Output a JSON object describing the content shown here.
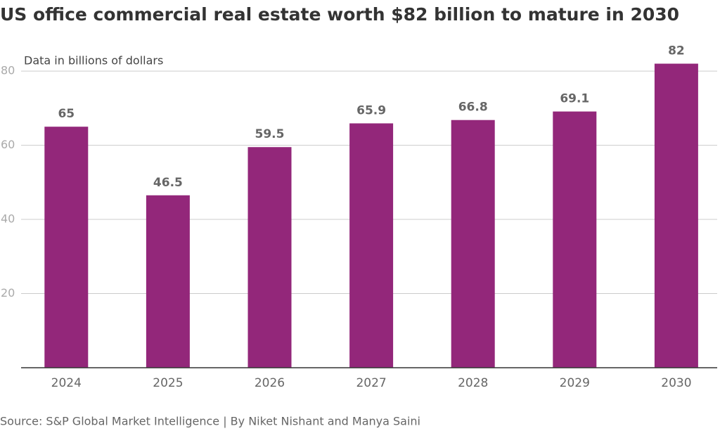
{
  "chart_data": {
    "type": "bar",
    "title": "US office commercial real estate worth $82 billion to mature in 2030",
    "subtitle": "Data in billions of dollars",
    "source": "Source: S&P Global Market Intelligence | By Niket Nishant and Manya Saini",
    "categories": [
      "2024",
      "2025",
      "2026",
      "2027",
      "2028",
      "2029",
      "2030"
    ],
    "values": [
      65,
      46.5,
      59.5,
      65.9,
      66.8,
      69.1,
      82
    ],
    "color": "#93277a",
    "ylim": [
      0,
      84
    ],
    "yticks": [
      20,
      40,
      60,
      80
    ],
    "grid": true
  }
}
